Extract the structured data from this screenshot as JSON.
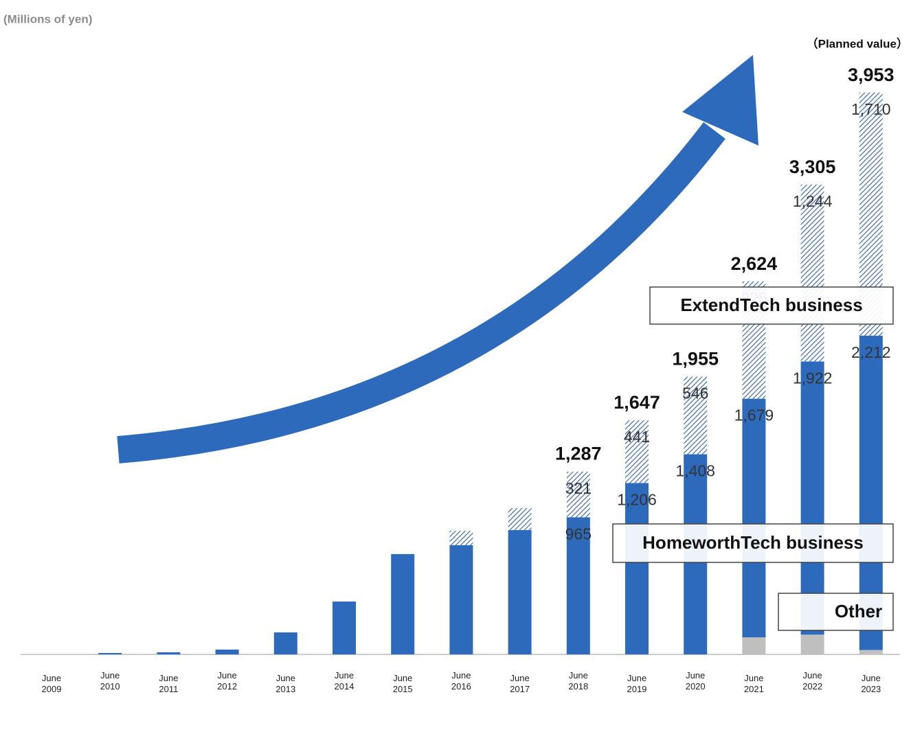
{
  "chart_data": {
    "type": "stacked_bar",
    "y_axis_label": "(Millions of yen)",
    "annotation": "（Planned value）",
    "categories": [
      "June 2009",
      "June 2010",
      "June 2011",
      "June 2012",
      "June 2013",
      "June 2014",
      "June 2015",
      "June 2016",
      "June 2017",
      "June 2018",
      "June 2019",
      "June 2020",
      "June 2021",
      "June 2022",
      "June 2023"
    ],
    "ylim": [
      0,
      4000
    ],
    "series": [
      {
        "name": "Other",
        "color": "#bfbfbf",
        "hatch": false,
        "values": [
          0,
          0,
          0,
          0,
          0,
          0,
          0,
          0,
          0,
          0,
          0,
          0,
          120,
          139,
          31
        ]
      },
      {
        "name": "HomeworthTech business",
        "color": "#2d6abb",
        "hatch": false,
        "values": [
          0,
          10,
          15,
          34,
          155,
          372,
          706,
          768,
          875,
          965,
          1206,
          1408,
          1679,
          1922,
          2212
        ],
        "value_labels": [
          null,
          null,
          null,
          null,
          null,
          null,
          null,
          null,
          null,
          "965",
          "1,206",
          "1,408",
          "1,679",
          "1,922",
          "2,212"
        ]
      },
      {
        "name": "ExtendTech business",
        "color": "#2d5ea6",
        "hatch": true,
        "values": [
          0,
          0,
          0,
          0,
          0,
          0,
          0,
          102,
          154,
          321,
          441,
          546,
          825,
          1244,
          1710
        ],
        "value_labels": [
          null,
          null,
          null,
          null,
          null,
          null,
          null,
          null,
          null,
          "321",
          "441",
          "546",
          "825",
          "1,244",
          "1,710"
        ]
      }
    ],
    "totals": [
      null,
      null,
      null,
      null,
      null,
      null,
      null,
      null,
      null,
      1287,
      1647,
      1955,
      2624,
      3305,
      3953
    ],
    "total_labels": [
      null,
      null,
      null,
      null,
      null,
      null,
      null,
      null,
      null,
      "1,287",
      "1,647",
      "1,955",
      "2,624",
      "3,305",
      "3,953"
    ]
  }
}
